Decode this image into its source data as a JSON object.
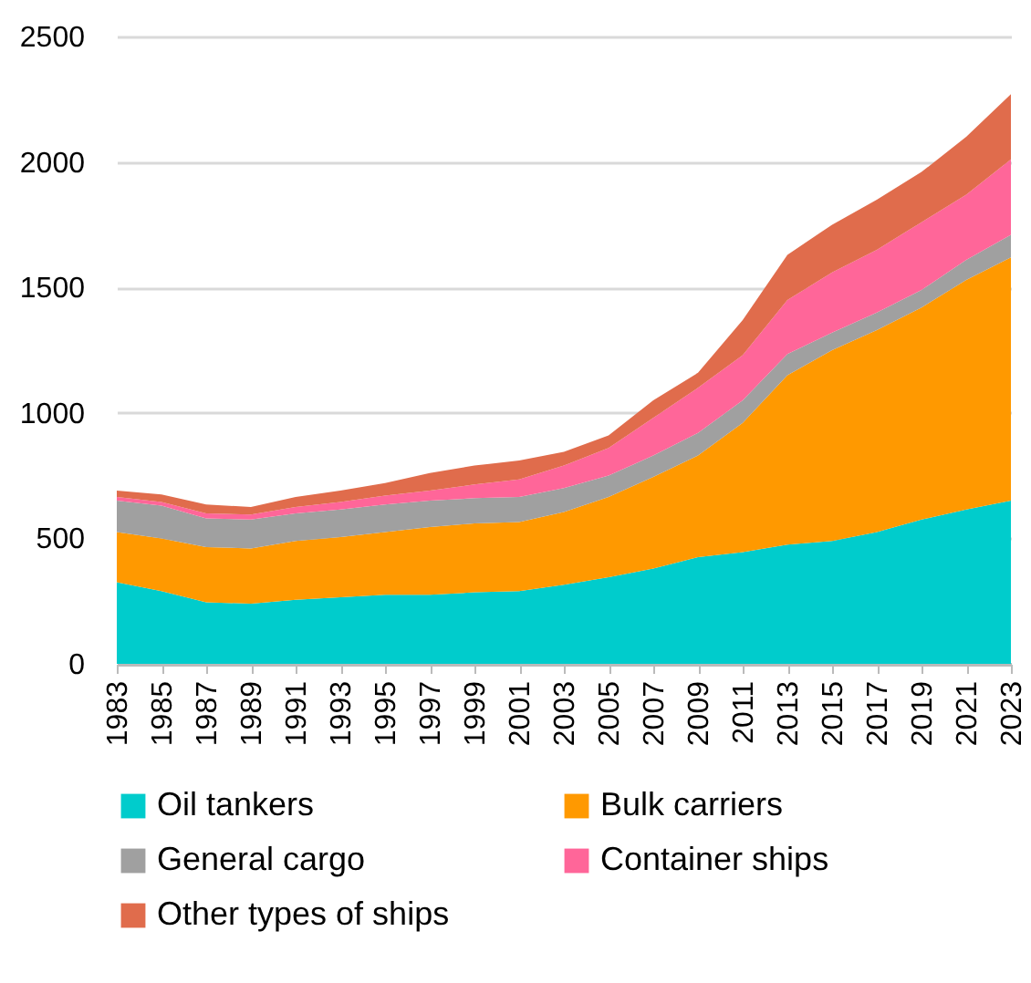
{
  "chart_data": {
    "type": "area",
    "stacked": true,
    "x": [
      1983,
      1985,
      1987,
      1989,
      1991,
      1993,
      1995,
      1997,
      1999,
      2001,
      2003,
      2005,
      2007,
      2009,
      2011,
      2013,
      2015,
      2017,
      2019,
      2021,
      2023
    ],
    "xlim": [
      1983,
      2023
    ],
    "xticks": [
      1983,
      1985,
      1987,
      1989,
      1991,
      1993,
      1995,
      1997,
      1999,
      2001,
      2003,
      2005,
      2007,
      2009,
      2011,
      2013,
      2015,
      2017,
      2019,
      2021,
      2023
    ],
    "ylim": [
      0,
      2500
    ],
    "yticks": [
      0,
      500,
      1000,
      1500,
      2000,
      2500
    ],
    "grid": "y",
    "legend": "bottom",
    "series": [
      {
        "name": "Oil tankers",
        "color": "#00cccc",
        "values": [
          325,
          290,
          245,
          240,
          255,
          265,
          275,
          275,
          285,
          290,
          315,
          345,
          380,
          425,
          445,
          475,
          490,
          525,
          575,
          615,
          650
        ]
      },
      {
        "name": "Bulk carriers",
        "color": "#ff9900",
        "values": [
          200,
          210,
          220,
          220,
          235,
          240,
          250,
          270,
          275,
          275,
          290,
          320,
          365,
          405,
          515,
          675,
          760,
          805,
          845,
          915,
          970
        ]
      },
      {
        "name": "General cargo",
        "color": "#a0a0a0",
        "values": [
          125,
          130,
          115,
          115,
          110,
          110,
          110,
          105,
          100,
          100,
          95,
          85,
          85,
          90,
          90,
          85,
          70,
          70,
          70,
          80,
          90
        ]
      },
      {
        "name": "Container ships",
        "color": "#ff6699",
        "values": [
          15,
          15,
          20,
          20,
          25,
          30,
          35,
          40,
          55,
          70,
          90,
          110,
          150,
          180,
          180,
          215,
          240,
          250,
          270,
          260,
          300
        ]
      },
      {
        "name": "Other types of ships",
        "color": "#e06c4c",
        "values": [
          25,
          30,
          35,
          30,
          40,
          45,
          50,
          70,
          75,
          75,
          55,
          50,
          70,
          60,
          140,
          180,
          190,
          200,
          200,
          230,
          260
        ]
      }
    ]
  }
}
